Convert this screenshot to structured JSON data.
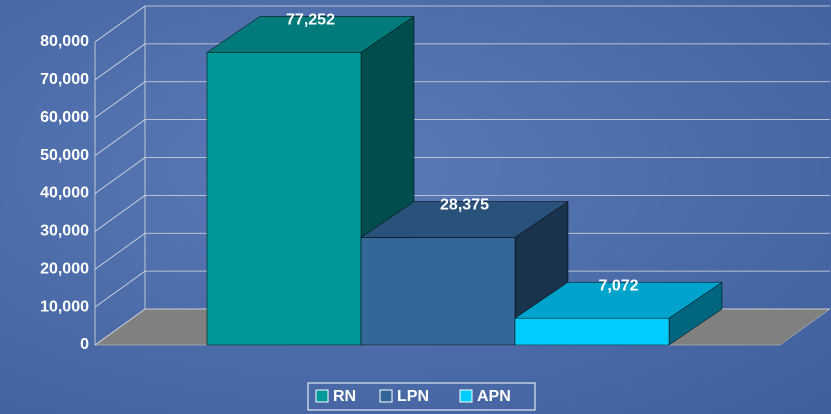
{
  "chart_data": {
    "type": "bar3d",
    "series": [
      {
        "name": "RN",
        "color": "#009999",
        "values": [
          77252
        ],
        "value_labels": [
          "77,252"
        ]
      },
      {
        "name": "LPN",
        "color": "#336699",
        "values": [
          28375
        ],
        "value_labels": [
          "28,375"
        ]
      },
      {
        "name": "APN",
        "color": "#00ccff",
        "values": [
          7072
        ],
        "value_labels": [
          "7,072"
        ]
      }
    ],
    "ylim": [
      0,
      80000
    ],
    "yticks": [
      {
        "value": 0,
        "label": "0"
      },
      {
        "value": 10000,
        "label": "10,000"
      },
      {
        "value": 20000,
        "label": "20,000"
      },
      {
        "value": 30000,
        "label": "30,000"
      },
      {
        "value": 40000,
        "label": "40,000"
      },
      {
        "value": 50000,
        "label": "50,000"
      },
      {
        "value": 60000,
        "label": "60,000"
      },
      {
        "value": 70000,
        "label": "70,000"
      },
      {
        "value": 80000,
        "label": "80,000"
      }
    ],
    "grid": true,
    "legend": "bottom"
  }
}
